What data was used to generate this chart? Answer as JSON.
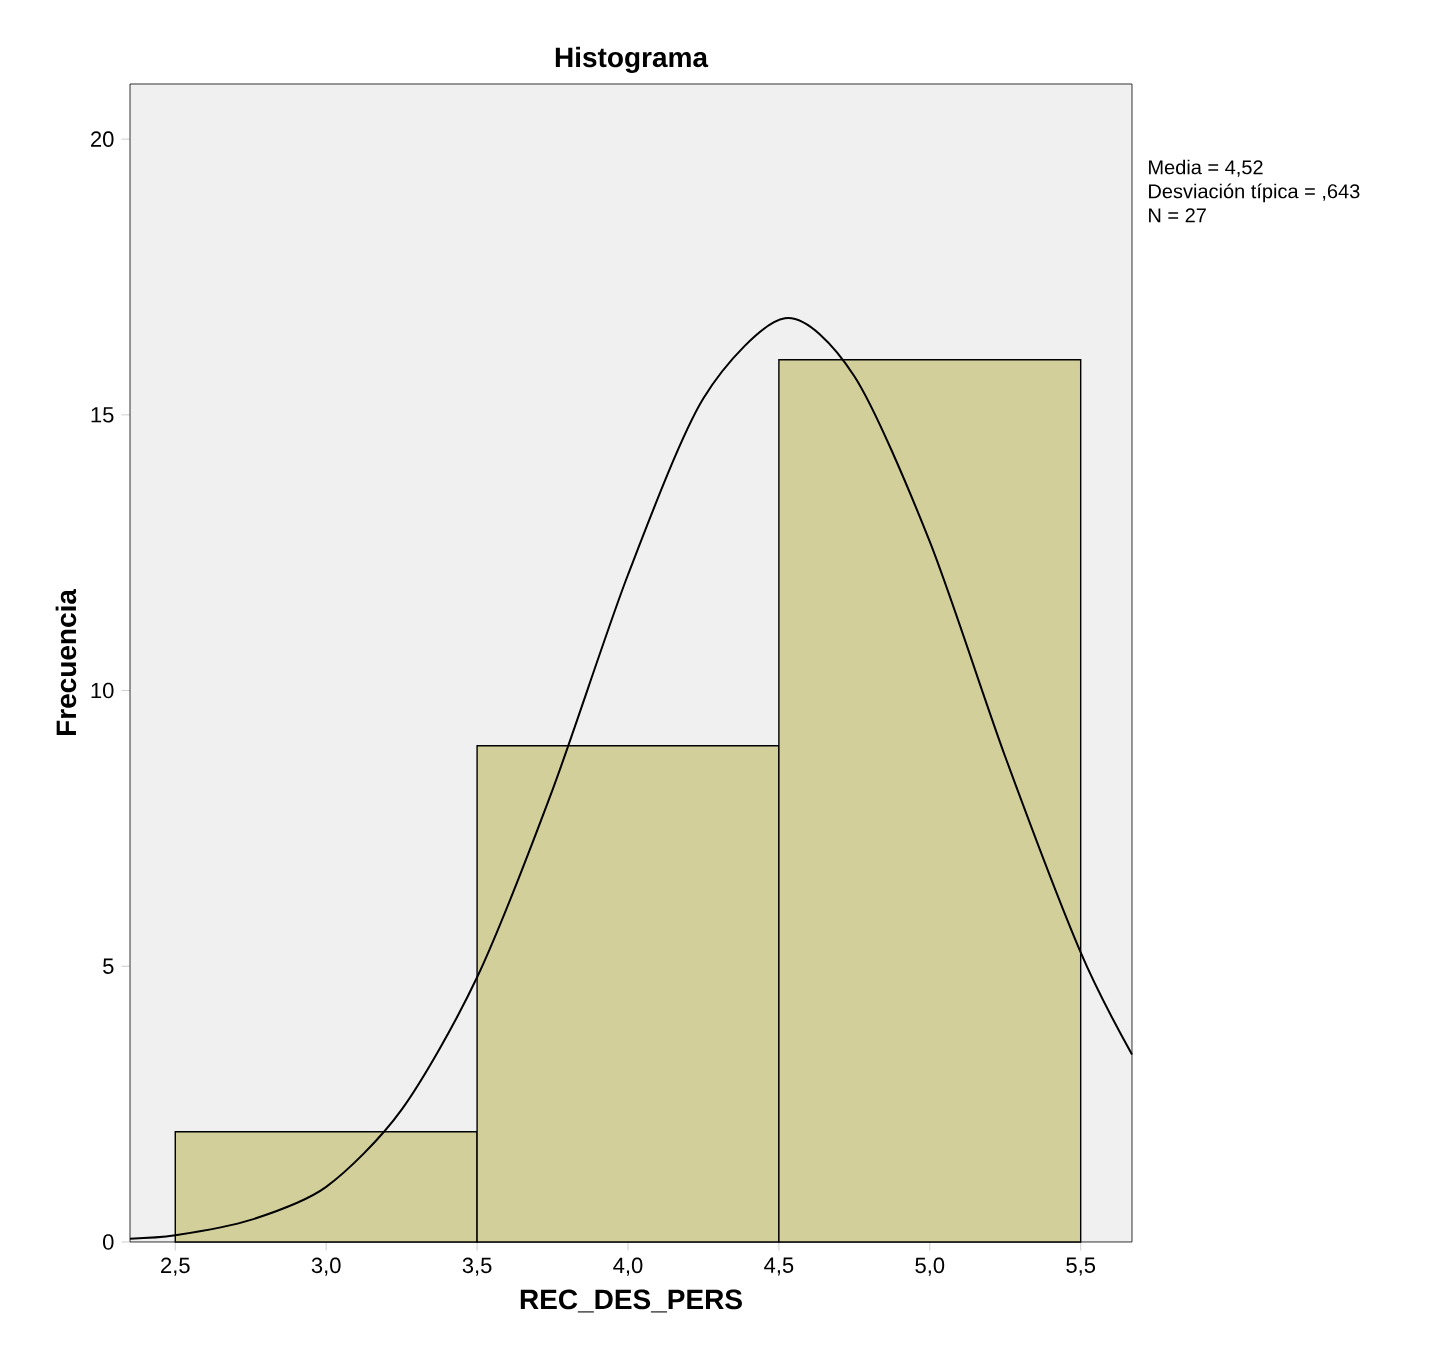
{
  "chart_data": {
    "type": "histogram",
    "title": "Histograma",
    "xlabel": "REC_DES_PERS",
    "ylabel": "Frecuencia",
    "bins": [
      2.5,
      3.5,
      4.5,
      5.5
    ],
    "values": [
      2,
      9,
      16
    ],
    "color": "#d3cf9b",
    "series": [
      {
        "type": "line",
        "color": "#000000",
        "x": [
          2.35,
          2.5,
          2.75,
          3.0,
          3.25,
          3.5,
          3.75,
          4.0,
          4.25,
          4.52,
          4.75,
          5.0,
          5.25,
          5.5,
          5.67
        ],
        "values": [
          0.06,
          0.12,
          0.4,
          1.0,
          2.4,
          4.8,
          8.2,
          12.1,
          15.3,
          16.75,
          15.7,
          12.7,
          8.8,
          5.25,
          3.4
        ]
      }
    ],
    "xlim": [
      2.35,
      5.67
    ],
    "ylim": [
      0,
      21
    ],
    "xticks": [
      {
        "value": 2.5,
        "label": "2,5"
      },
      {
        "value": 3.0,
        "label": "3,0"
      },
      {
        "value": 3.5,
        "label": "3,5"
      },
      {
        "value": 4.0,
        "label": "4,0"
      },
      {
        "value": 4.5,
        "label": "4,5"
      },
      {
        "value": 5.0,
        "label": "5,0"
      },
      {
        "value": 5.5,
        "label": "5,5"
      }
    ],
    "yticks": [
      0,
      5,
      10,
      15,
      20
    ],
    "annotations": [
      "Media = 4,52",
      "Desviación típica = ,643",
      "N = 27"
    ]
  }
}
